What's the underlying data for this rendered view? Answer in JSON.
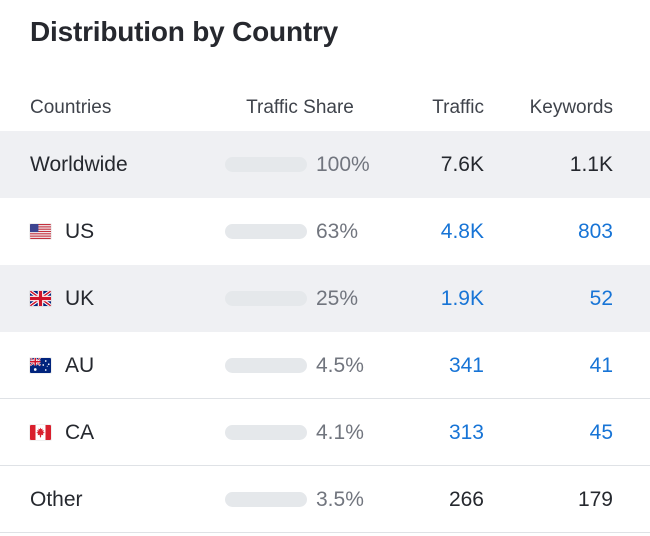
{
  "title": "Distribution by Country",
  "colors": {
    "bar_fill": "#47b2f2",
    "bar_track": "#e5e8eb",
    "row_stripe": "#eff0f3",
    "divider": "#dfe2e6",
    "link_blue": "#1774d6",
    "text_dark": "#25282e",
    "text_gray": "#71757e"
  },
  "table": {
    "columns": [
      {
        "id": "countries",
        "label": "Countries"
      },
      {
        "id": "traffic_share",
        "label": "Traffic Share"
      },
      {
        "id": "traffic",
        "label": "Traffic"
      },
      {
        "id": "keywords",
        "label": "Keywords"
      }
    ],
    "rows": [
      {
        "country": "Worldwide",
        "flag_icon": null,
        "share_pct": 100,
        "share_label": "100%",
        "traffic": "7.6K",
        "traffic_link": false,
        "keywords": "1.1K",
        "keywords_link": false,
        "striped": true,
        "divider": false
      },
      {
        "country": "US",
        "flag_icon": "us-flag-icon",
        "share_pct": 63,
        "share_label": "63%",
        "traffic": "4.8K",
        "traffic_link": true,
        "keywords": "803",
        "keywords_link": true,
        "striped": false,
        "divider": false
      },
      {
        "country": "UK",
        "flag_icon": "uk-flag-icon",
        "share_pct": 25,
        "share_label": "25%",
        "traffic": "1.9K",
        "traffic_link": true,
        "keywords": "52",
        "keywords_link": true,
        "striped": true,
        "divider": false
      },
      {
        "country": "AU",
        "flag_icon": "au-flag-icon",
        "share_pct": 4.5,
        "share_label": "4.5%",
        "traffic": "341",
        "traffic_link": true,
        "keywords": "41",
        "keywords_link": true,
        "striped": false,
        "divider": true
      },
      {
        "country": "CA",
        "flag_icon": "ca-flag-icon",
        "share_pct": 4.1,
        "share_label": "4.1%",
        "traffic": "313",
        "traffic_link": true,
        "keywords": "45",
        "keywords_link": true,
        "striped": false,
        "divider": true
      },
      {
        "country": "Other",
        "flag_icon": null,
        "share_pct": 3.5,
        "share_label": "3.5%",
        "traffic": "266",
        "traffic_link": false,
        "keywords": "179",
        "keywords_link": false,
        "striped": false,
        "divider": true
      }
    ]
  }
}
